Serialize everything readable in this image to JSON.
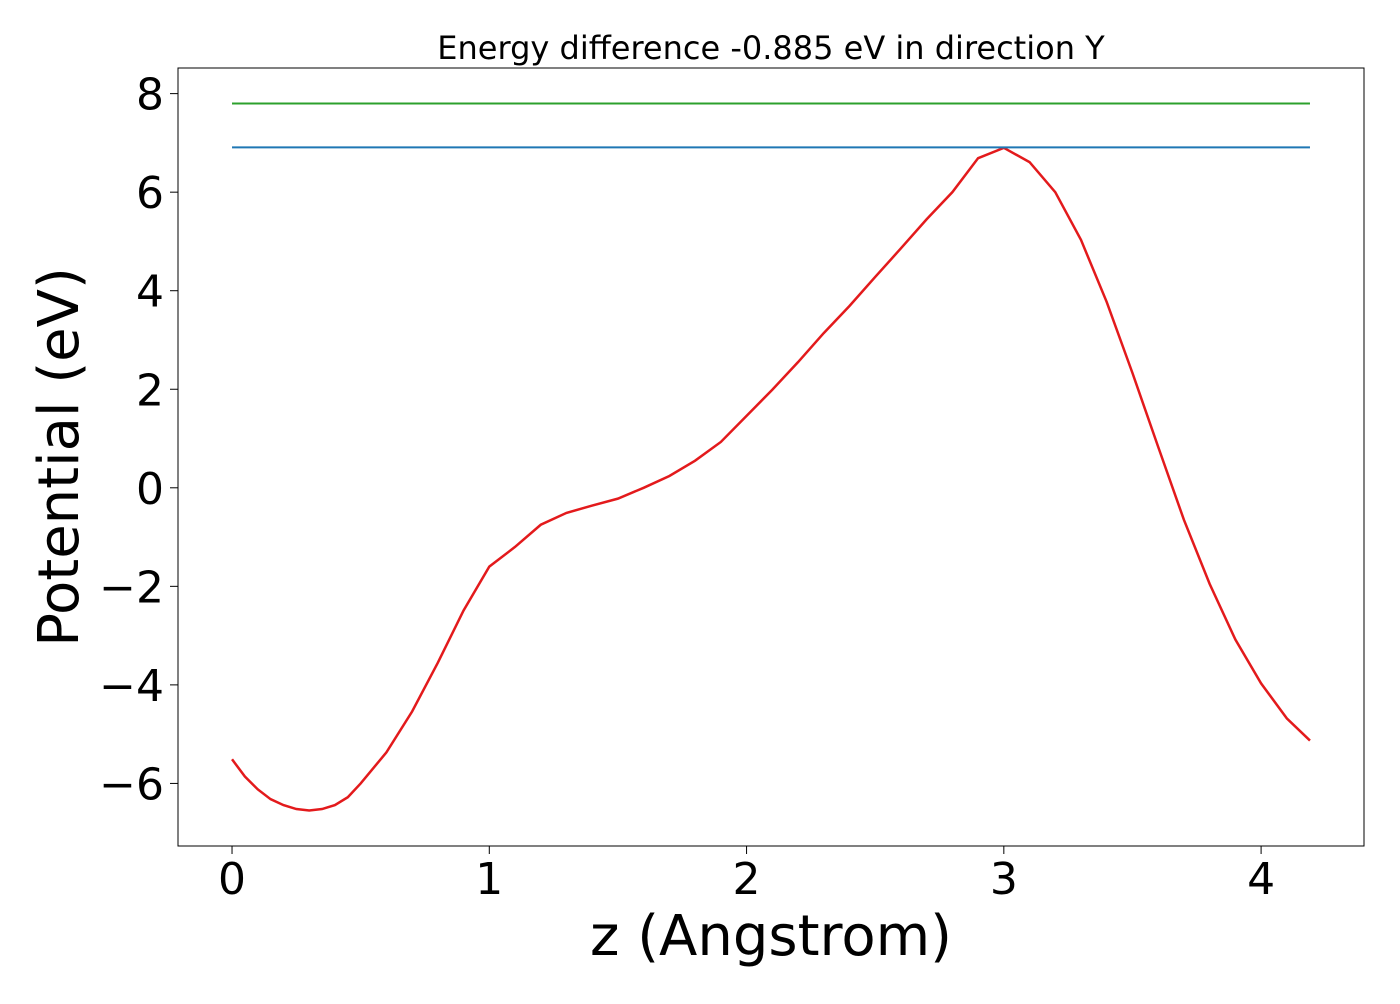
{
  "chart_data": {
    "type": "line",
    "title": "Energy difference -0.885 eV in direction Y",
    "xlabel": "z (Angstrom)",
    "ylabel": "Potential (eV)",
    "xlim": [
      -0.21,
      4.4
    ],
    "ylim": [
      -7.27,
      8.52
    ],
    "xticks": [
      0,
      1,
      2,
      3,
      4
    ],
    "yticks": [
      {
        "value": -6,
        "label": "−6"
      },
      {
        "value": -4,
        "label": "−4"
      },
      {
        "value": -2,
        "label": "−2"
      },
      0,
      2,
      4,
      6,
      8
    ],
    "series": [
      {
        "color": "#e31a1c",
        "x": [
          0,
          0.05,
          0.1,
          0.15,
          0.2,
          0.25,
          0.3,
          0.35,
          0.4,
          0.45,
          0.5,
          0.6,
          0.7,
          0.8,
          0.9,
          1.0,
          1.1,
          1.2,
          1.3,
          1.4,
          1.5,
          1.6,
          1.7,
          1.8,
          1.9,
          2.0,
          2.1,
          2.2,
          2.3,
          2.4,
          2.5,
          2.6,
          2.7,
          2.8,
          2.9,
          3.0,
          3.1,
          3.2,
          3.3,
          3.4,
          3.5,
          3.6,
          3.7,
          3.8,
          3.9,
          4.0,
          4.1,
          4.19
        ],
        "values": [
          -5.51,
          -5.86,
          -6.12,
          -6.32,
          -6.44,
          -6.52,
          -6.55,
          -6.52,
          -6.44,
          -6.28,
          -6.0,
          -5.37,
          -4.54,
          -3.55,
          -2.49,
          -1.6,
          -1.2,
          -0.75,
          -0.51,
          -0.36,
          -0.22,
          0.0,
          0.24,
          0.55,
          0.93,
          1.46,
          1.99,
          2.55,
          3.14,
          3.69,
          4.28,
          4.86,
          5.45,
          6.0,
          6.69,
          6.9,
          6.61,
          6.0,
          5.03,
          3.77,
          2.33,
          0.83,
          -0.65,
          -1.95,
          -3.08,
          -3.97,
          -4.68,
          -5.13
        ]
      },
      {
        "color": "#1f77b4",
        "x": [
          0,
          4.19
        ],
        "values": [
          6.91,
          6.91
        ]
      },
      {
        "color": "#2ca02c",
        "x": [
          0,
          4.19
        ],
        "values": [
          7.8,
          7.8
        ]
      }
    ]
  }
}
